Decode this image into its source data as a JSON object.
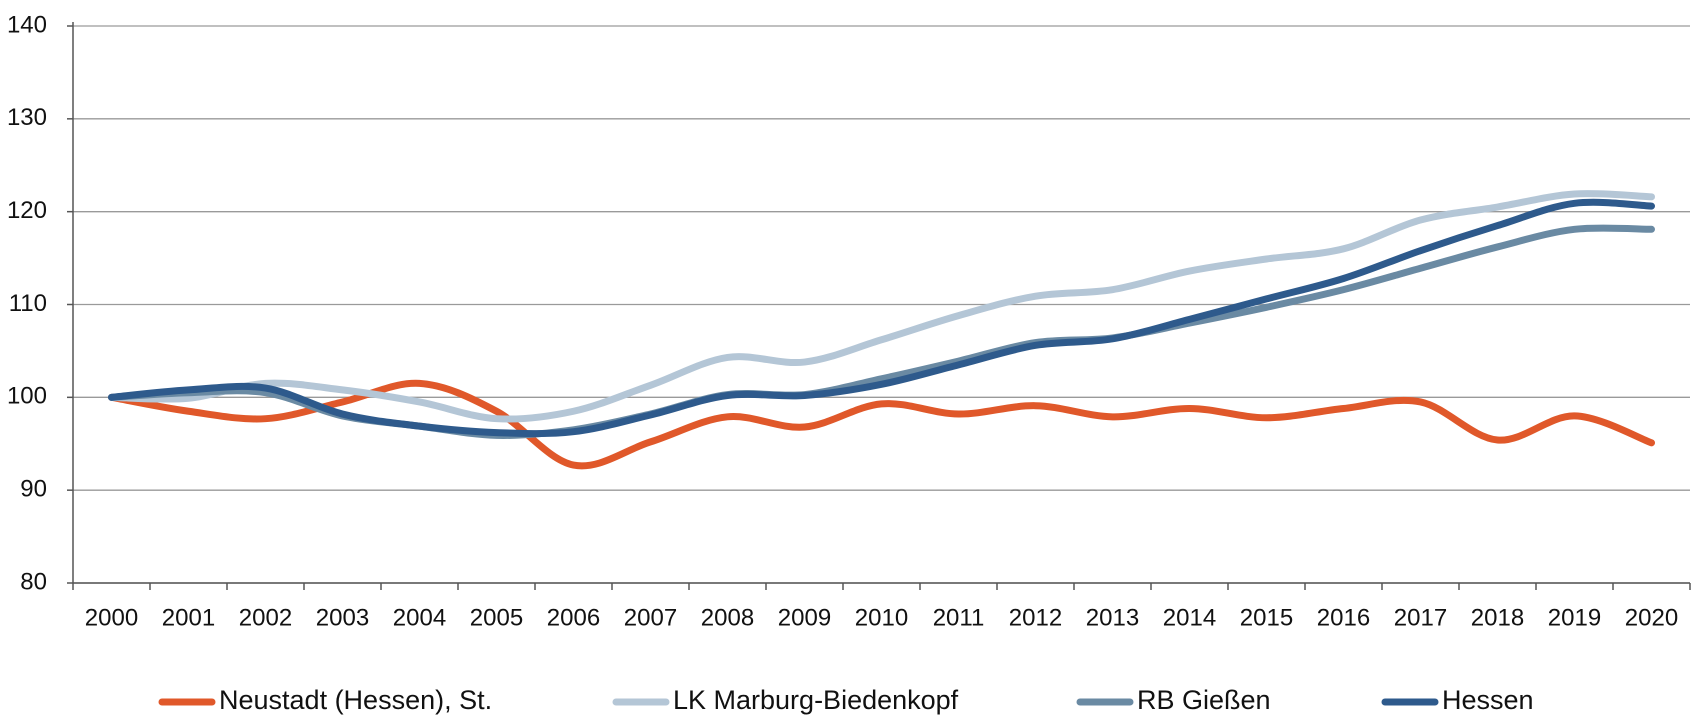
{
  "chart_data": {
    "type": "line",
    "categories": [
      "2000",
      "2001",
      "2002",
      "2003",
      "2004",
      "2005",
      "2006",
      "2007",
      "2008",
      "2009",
      "2010",
      "2011",
      "2012",
      "2013",
      "2014",
      "2015",
      "2016",
      "2017",
      "2018",
      "2019",
      "2020"
    ],
    "series": [
      {
        "name": "Neustadt (Hessen), St.",
        "color": "#e0582a",
        "values": [
          100,
          98.5,
          97.7,
          99.5,
          101.5,
          98.5,
          92.7,
          95.2,
          97.9,
          96.8,
          99.3,
          98.2,
          99.1,
          97.9,
          98.8,
          97.8,
          98.8,
          99.5,
          95.4,
          98.0,
          95.1
        ]
      },
      {
        "name": "LK Marburg-Biedenkopf",
        "color": "#b4c6d6",
        "values": [
          100,
          99.9,
          101.5,
          100.8,
          99.5,
          97.7,
          98.5,
          101.3,
          104.3,
          103.8,
          106.2,
          108.8,
          110.9,
          111.6,
          113.6,
          114.9,
          116.0,
          119.1,
          120.5,
          121.9,
          121.6
        ]
      },
      {
        "name": "RB Gießen",
        "color": "#6a8aa3",
        "values": [
          100,
          100.5,
          100.5,
          98.0,
          96.9,
          95.9,
          96.5,
          98.2,
          100.3,
          100.3,
          102.0,
          103.9,
          105.9,
          106.4,
          108.0,
          109.7,
          111.6,
          113.9,
          116.2,
          118.1,
          118.1
        ]
      },
      {
        "name": "Hessen",
        "color": "#2e5a8c",
        "values": [
          100,
          100.8,
          101.0,
          98.2,
          96.9,
          96.2,
          96.3,
          98.1,
          100.2,
          100.2,
          101.4,
          103.5,
          105.6,
          106.3,
          108.4,
          110.6,
          112.8,
          115.8,
          118.5,
          120.9,
          120.6
        ]
      }
    ],
    "ylim": [
      80,
      140
    ],
    "yticks": [
      80,
      90,
      100,
      110,
      120,
      130,
      140
    ],
    "grid": true,
    "legend": "bottom"
  }
}
